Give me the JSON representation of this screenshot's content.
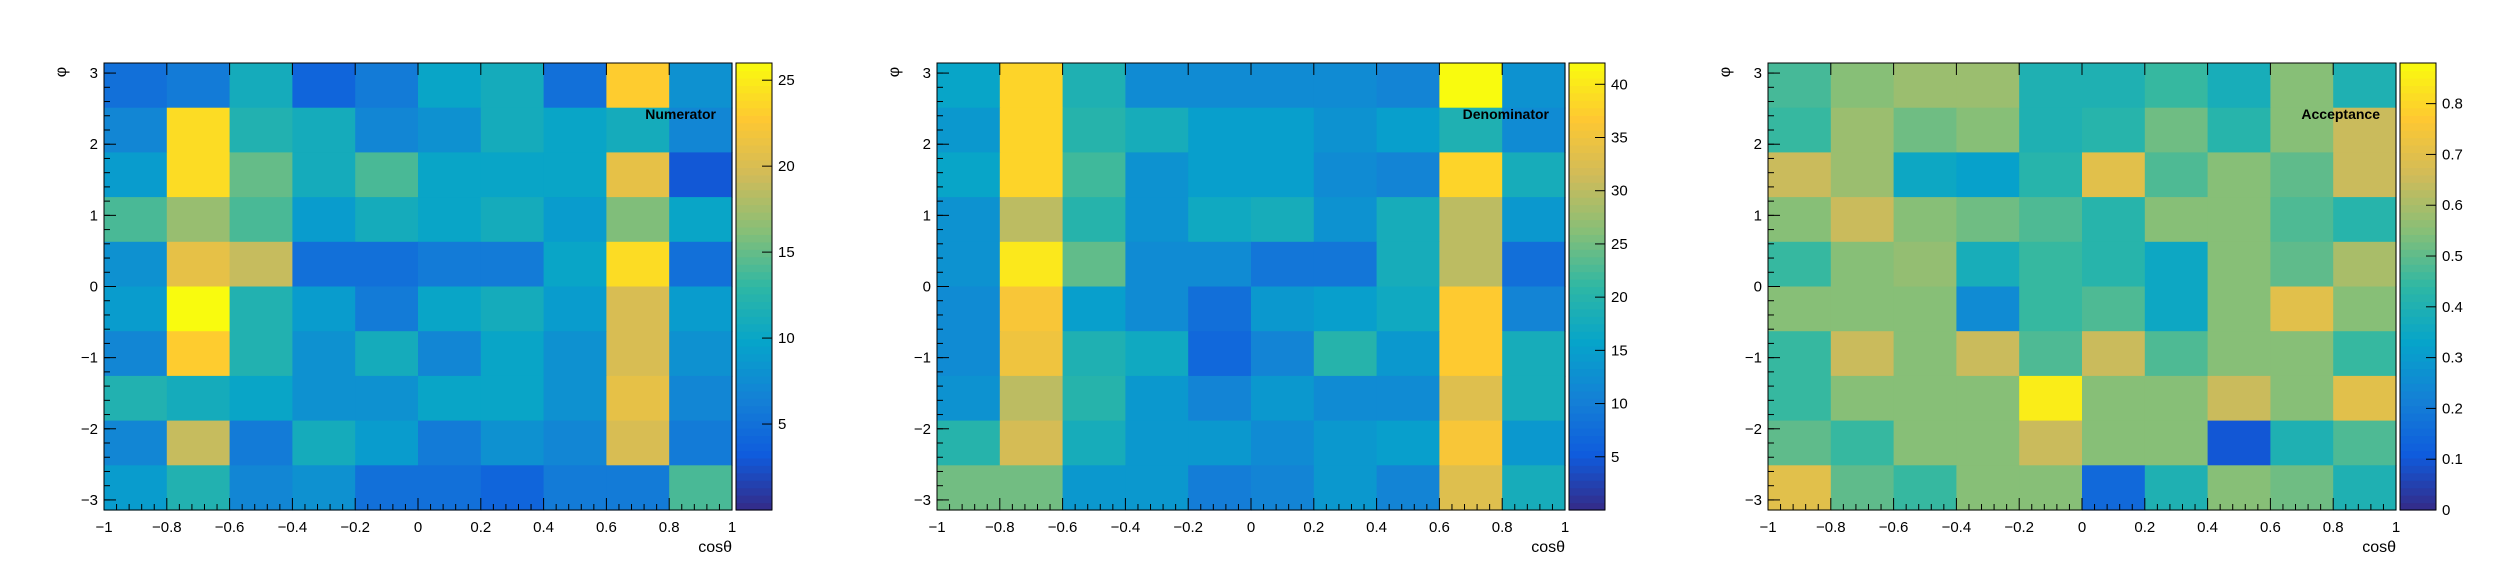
{
  "colormap": [
    "#352a87",
    "#0f5cdd",
    "#1481d6",
    "#06a4ca",
    "#2eb7a4",
    "#87bf77",
    "#d1bb59",
    "#fec832",
    "#f9fb0e"
  ],
  "chart_data": [
    {
      "type": "heatmap",
      "title": "Numerator",
      "xlabel": "cosθ",
      "ylabel": "φ",
      "xlim": [
        -1,
        1
      ],
      "ylim": [
        -3.14159,
        3.14159
      ],
      "x_ticks": [
        "−1",
        "−0.8",
        "−0.6",
        "−0.4",
        "−0.2",
        "0",
        "0.2",
        "0.4",
        "0.6",
        "0.8",
        "1"
      ],
      "y_ticks": [
        "−3",
        "−2",
        "−1",
        "0",
        "1",
        "2",
        "3"
      ],
      "colorbar_ticks": [
        "5",
        "10",
        "15",
        "20",
        "25"
      ],
      "zlim": [
        0,
        26
      ],
      "nx": 10,
      "ny": 10,
      "z": [
        [
          5,
          6,
          11,
          4,
          6,
          10,
          11,
          5,
          23,
          8
        ],
        [
          7,
          24,
          12,
          11,
          7,
          8,
          11,
          10,
          11,
          7
        ],
        [
          9,
          24,
          15,
          11,
          14,
          10,
          10,
          10,
          21,
          3
        ],
        [
          14,
          17,
          14,
          9,
          11,
          10,
          11,
          9,
          16,
          10
        ],
        [
          8,
          21,
          19,
          5,
          5,
          6,
          6,
          10,
          24,
          5
        ],
        [
          9,
          26,
          12,
          9,
          6,
          10,
          11,
          9,
          20,
          9
        ],
        [
          7,
          23,
          12,
          8,
          11,
          7,
          10,
          8,
          20,
          8
        ],
        [
          12,
          11,
          10,
          8,
          8,
          10,
          10,
          8,
          21,
          7
        ],
        [
          7,
          19,
          6,
          11,
          9,
          6,
          8,
          7,
          20,
          6
        ],
        [
          9,
          12,
          7,
          8,
          5,
          5,
          4,
          6,
          6,
          14
        ]
      ]
    },
    {
      "type": "heatmap",
      "title": "Denominator",
      "xlabel": "cosθ",
      "ylabel": "φ",
      "xlim": [
        -1,
        1
      ],
      "ylim": [
        -3.14159,
        3.14159
      ],
      "x_ticks": [
        "−1",
        "−0.8",
        "−0.6",
        "−0.4",
        "−0.2",
        "0",
        "0.2",
        "0.4",
        "0.6",
        "0.8",
        "1"
      ],
      "y_ticks": [
        "−3",
        "−2",
        "−1",
        "0",
        "1",
        "2",
        "3"
      ],
      "colorbar_ticks": [
        "5",
        "10",
        "15",
        "20",
        "25",
        "30",
        "35",
        "40"
      ],
      "zlim": [
        0,
        42
      ],
      "nx": 10,
      "ny": 10,
      "z": [
        [
          16,
          38,
          19,
          12,
          12,
          12,
          12,
          11,
          42,
          13
        ],
        [
          14,
          38,
          20,
          18,
          15,
          15,
          13,
          15,
          19,
          12
        ],
        [
          16,
          38,
          22,
          13,
          15,
          15,
          12,
          11,
          38,
          18
        ],
        [
          13,
          30,
          20,
          13,
          17,
          18,
          13,
          18,
          30,
          14
        ],
        [
          13,
          40,
          24,
          12,
          12,
          9,
          9,
          18,
          30,
          8
        ],
        [
          12,
          36,
          15,
          12,
          8,
          14,
          15,
          17,
          37,
          11
        ],
        [
          12,
          35,
          19,
          17,
          7,
          11,
          20,
          14,
          37,
          18
        ],
        [
          13,
          30,
          20,
          14,
          11,
          14,
          12,
          12,
          33,
          18
        ],
        [
          20,
          32,
          18,
          14,
          14,
          12,
          14,
          15,
          36,
          14
        ],
        [
          25,
          25,
          14,
          14,
          10,
          11,
          14,
          11,
          33,
          18
        ]
      ]
    },
    {
      "type": "heatmap",
      "title": "Acceptance",
      "xlabel": "cosθ",
      "ylabel": "φ",
      "xlim": [
        -1,
        1
      ],
      "ylim": [
        -3.14159,
        3.14159
      ],
      "x_ticks": [
        "−1",
        "−0.8",
        "−0.6",
        "−0.4",
        "−0.2",
        "0",
        "0.2",
        "0.4",
        "0.6",
        "0.8",
        "1"
      ],
      "y_ticks": [
        "−3",
        "−2",
        "−1",
        "0",
        "1",
        "2",
        "3"
      ],
      "colorbar_ticks": [
        "0",
        "0.1",
        "0.2",
        "0.3",
        "0.4",
        "0.5",
        "0.6",
        "0.7",
        "0.8"
      ],
      "zlim": [
        0,
        0.88
      ],
      "nx": 10,
      "ny": 10,
      "z": [
        [
          0.47,
          0.55,
          0.58,
          0.58,
          0.4,
          0.4,
          0.45,
          0.38,
          0.55,
          0.4
        ],
        [
          0.45,
          0.58,
          0.52,
          0.55,
          0.4,
          0.42,
          0.52,
          0.42,
          0.55,
          0.65
        ],
        [
          0.65,
          0.58,
          0.35,
          0.32,
          0.42,
          0.7,
          0.48,
          0.55,
          0.5,
          0.65
        ],
        [
          0.55,
          0.65,
          0.55,
          0.52,
          0.48,
          0.42,
          0.55,
          0.55,
          0.48,
          0.42
        ],
        [
          0.45,
          0.55,
          0.57,
          0.38,
          0.45,
          0.42,
          0.35,
          0.55,
          0.5,
          0.6
        ],
        [
          0.55,
          0.55,
          0.55,
          0.25,
          0.45,
          0.48,
          0.35,
          0.55,
          0.7,
          0.55
        ],
        [
          0.45,
          0.65,
          0.55,
          0.65,
          0.48,
          0.65,
          0.48,
          0.55,
          0.55,
          0.45
        ],
        [
          0.45,
          0.55,
          0.55,
          0.55,
          0.85,
          0.55,
          0.55,
          0.65,
          0.55,
          0.7
        ],
        [
          0.5,
          0.45,
          0.55,
          0.55,
          0.65,
          0.55,
          0.55,
          0.1,
          0.4,
          0.48
        ],
        [
          0.7,
          0.5,
          0.45,
          0.55,
          0.55,
          0.15,
          0.4,
          0.55,
          0.52,
          0.4
        ]
      ]
    }
  ]
}
